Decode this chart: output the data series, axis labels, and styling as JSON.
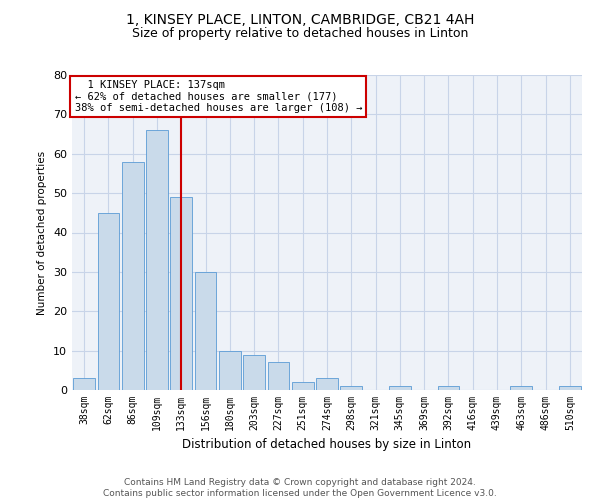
{
  "title1": "1, KINSEY PLACE, LINTON, CAMBRIDGE, CB21 4AH",
  "title2": "Size of property relative to detached houses in Linton",
  "xlabel": "Distribution of detached houses by size in Linton",
  "ylabel": "Number of detached properties",
  "footnote1": "Contains HM Land Registry data © Crown copyright and database right 2024.",
  "footnote2": "Contains public sector information licensed under the Open Government Licence v3.0.",
  "bin_labels": [
    "38sqm",
    "62sqm",
    "86sqm",
    "109sqm",
    "133sqm",
    "156sqm",
    "180sqm",
    "203sqm",
    "227sqm",
    "251sqm",
    "274sqm",
    "298sqm",
    "321sqm",
    "345sqm",
    "369sqm",
    "392sqm",
    "416sqm",
    "439sqm",
    "463sqm",
    "486sqm",
    "510sqm"
  ],
  "bar_values": [
    3,
    45,
    58,
    66,
    49,
    30,
    10,
    9,
    7,
    2,
    3,
    1,
    0,
    1,
    0,
    1,
    0,
    0,
    1,
    0,
    1
  ],
  "bar_color": "#c9daea",
  "bar_edge_color": "#5b9bd5",
  "red_line_bin_index": 4,
  "annotation_line1": "  1 KINSEY PLACE: 137sqm",
  "annotation_line2": "← 62% of detached houses are smaller (177)",
  "annotation_line3": "38% of semi-detached houses are larger (108) →",
  "ylim": [
    0,
    80
  ],
  "yticks": [
    0,
    10,
    20,
    30,
    40,
    50,
    60,
    70,
    80
  ],
  "grid_color": "#c8d4e8",
  "background_color": "#f0f4fb",
  "plot_bg_color": "#eef2f8",
  "annotation_box_color": "#ffffff",
  "annotation_box_edge": "#cc0000",
  "red_line_color": "#cc0000",
  "title1_fontsize": 10,
  "title2_fontsize": 9,
  "footnote_fontsize": 6.5,
  "xlabel_fontsize": 8.5,
  "ylabel_fontsize": 7.5,
  "tick_label_fontsize": 7,
  "annotation_fontsize": 7.5
}
